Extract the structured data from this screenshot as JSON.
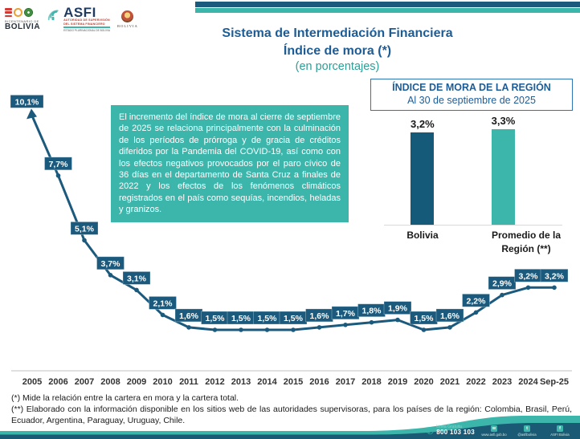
{
  "colors": {
    "dark_blue": "#1b5a7d",
    "title_blue": "#1e5c96",
    "teal": "#3cb5ab",
    "teal_dark": "#2f9e96",
    "bar_bolivia": "#155a78",
    "footer_dark": "#1a5a74",
    "box_border": "#2e75b6",
    "axis_gray": "#c0c0c0"
  },
  "header": {
    "logos": {
      "bicentenario": {
        "line1": "BICENTENARIO DE",
        "line2": "BOLIVIA"
      },
      "asfi": {
        "name": "ASFI",
        "sub1": "AUTORIDAD DE SUPERVISIÓN",
        "sub2": "DEL SISTEMA FINANCIERO",
        "sub3": "ESTADO PLURINACIONAL DE BOLIVIA"
      },
      "emblem": {
        "label": "BOLIVIA"
      }
    }
  },
  "title": {
    "line1": "Sistema de Intermediación Financiera",
    "line2": "Índice de mora (*)",
    "line3": "(en porcentajes)"
  },
  "annotation": {
    "text": "El incremento del índice de mora al cierre de septiembre de 2025 se relaciona principalmente con la culminación de los períodos de prórroga y de gracia de créditos diferidos por la Pandemia del COVID-19, así como con los efectos negativos provocados por el paro cívico de 36 días en el departamento de Santa Cruz a finales de 2022 y los efectos de los fenómenos climáticos registrados en el país como sequías, incendios, heladas y granizos."
  },
  "region_panel": {
    "title": "ÍNDICE DE MORA DE LA REGIÓN",
    "subtitle": "Al 30 de septiembre de 2025"
  },
  "chart_data": [
    {
      "type": "line",
      "title": "Sistema de Intermediación Financiera - Índice de mora (en porcentajes)",
      "categories": [
        "2005",
        "2006",
        "2007",
        "2008",
        "2009",
        "2010",
        "2011",
        "2012",
        "2013",
        "2014",
        "2015",
        "2016",
        "2017",
        "2018",
        "2019",
        "2020",
        "2021",
        "2022",
        "2023",
        "2024",
        "Sep-25"
      ],
      "values": [
        10.1,
        7.7,
        5.1,
        3.7,
        3.1,
        2.1,
        1.6,
        1.5,
        1.5,
        1.5,
        1.5,
        1.6,
        1.7,
        1.8,
        1.9,
        1.5,
        1.6,
        2.2,
        2.9,
        3.2,
        3.2
      ],
      "point_labels": [
        "10,1%",
        "7,7%",
        "5,1%",
        "3,7%",
        "3,1%",
        "2,1%",
        "1,6%",
        "1,5%",
        "1,5%",
        "1,5%",
        "1,5%",
        "1,6%",
        "1,7%",
        "1,8%",
        "1,9%",
        "1,5%",
        "1,6%",
        "2,2%",
        "2,9%",
        "3,2%",
        "3,2%"
      ],
      "xlabel": "",
      "ylabel": "",
      "ylim": [
        0,
        11
      ],
      "grid": false,
      "legend": "none"
    },
    {
      "type": "bar",
      "title": "ÍNDICE DE MORA DE LA REGIÓN",
      "subtitle": "Al 30 de septiembre de 2025",
      "categories": [
        "Bolivia",
        "Promedio de la Región (**)"
      ],
      "values": [
        3.2,
        3.3
      ],
      "bar_labels": [
        "3,2%",
        "3,3%"
      ],
      "bar_colors": [
        "#155a78",
        "#3cb5ab"
      ],
      "ylim": [
        0,
        3.5
      ],
      "grid": false
    }
  ],
  "footnotes": {
    "note1": "(*) Mide la relación entre la cartera en mora y la cartera total.",
    "note2": "(**) Elaborado con la información disponible en los sitios web de las autoridades supervisoras, para los países de la región: Colombia, Brasil, Perú, Ecuador, Argentina, Paraguay, Uruguay, Chile."
  },
  "footer": {
    "phone_label": "Línea Gratuita",
    "phone_number": "800 103 103",
    "website": "www.asfi.gob.bo",
    "twitter": "@asfibolivia",
    "facebook": "ASFI Bolivia"
  }
}
